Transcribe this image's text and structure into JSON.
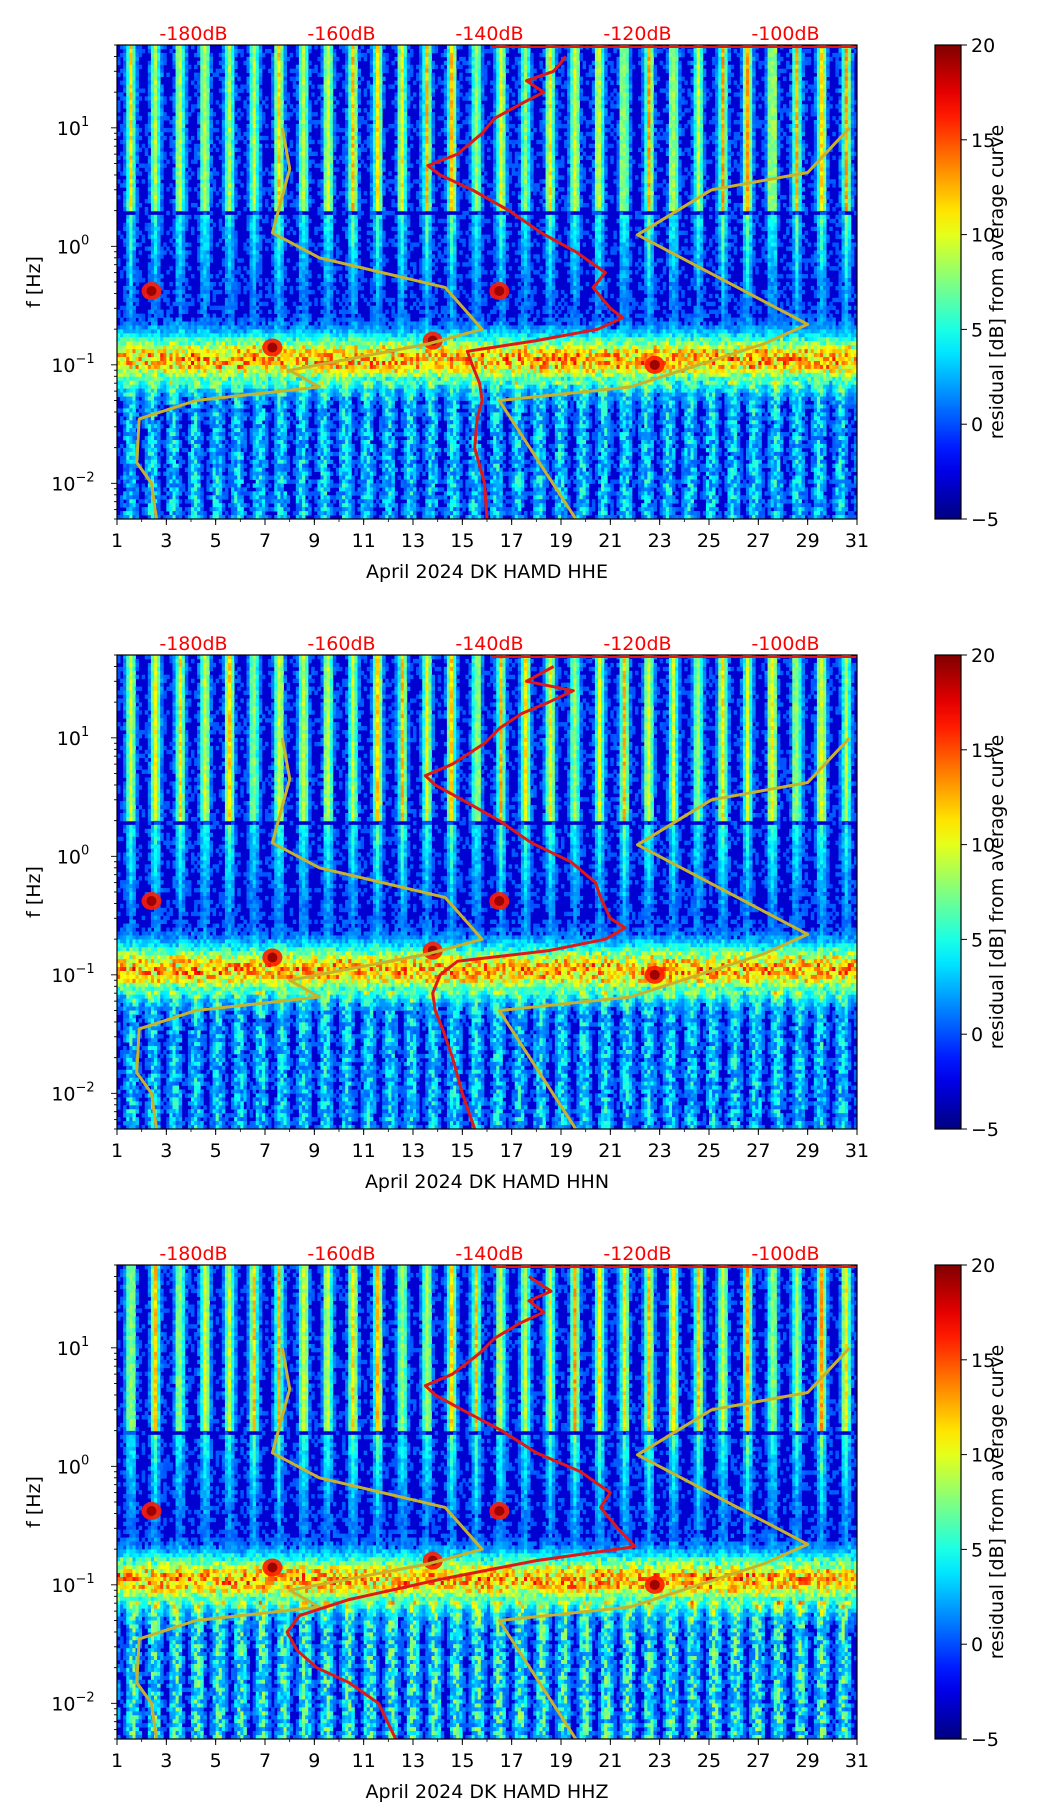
{
  "colors": {
    "noise_model": "#c8b22c",
    "average_curve": "#e01818",
    "db_labels": "#ff0000"
  },
  "chart_data": [
    {
      "type": "heatmap",
      "xlabel": "April 2024 DK HAMD  HHE",
      "ylabel": "f [Hz]",
      "x_ticks": [
        "1",
        "3",
        "5",
        "7",
        "9",
        "11",
        "13",
        "15",
        "17",
        "19",
        "21",
        "23",
        "25",
        "27",
        "29",
        "31"
      ],
      "xlim": [
        1,
        31
      ],
      "y_ticks": [
        {
          "value": 10,
          "base": "10",
          "exp": "1"
        },
        {
          "value": 1,
          "base": "10",
          "exp": "0"
        },
        {
          "value": 0.1,
          "base": "10",
          "exp": "−1"
        },
        {
          "value": 0.01,
          "base": "10",
          "exp": "−2"
        }
      ],
      "ylim": [
        0.005,
        50
      ],
      "yscale": "log",
      "top_axis_labels": [
        "-180dB",
        "-160dB",
        "-140dB",
        "-120dB",
        "-100dB"
      ],
      "top_axis_positions": [
        4.1,
        10.1,
        16.1,
        22.1,
        28.1
      ],
      "colorbar": {
        "label": "residual [dB] from average curve",
        "ticks": [
          "20",
          "15",
          "10",
          "5",
          "0",
          "−5"
        ],
        "range": [
          -5,
          20
        ]
      },
      "noise_model": {
        "x": [
          7.7,
          8.0,
          7.3,
          9.2,
          14.3,
          15.8,
          13.6,
          8.0,
          9.2,
          4.2,
          1.9,
          1.8,
          2.4,
          2.6
        ],
        "y": [
          10,
          4.5,
          1.3,
          0.8,
          0.45,
          0.2,
          0.15,
          0.09,
          0.065,
          0.05,
          0.035,
          0.015,
          0.01,
          0.005
        ]
      },
      "noise_model_high": {
        "x": [
          30.7,
          29.0,
          25.1,
          22.1,
          29.0,
          27.2,
          21.8,
          16.5,
          19.6
        ],
        "y": [
          10,
          4.2,
          3.0,
          1.25,
          0.22,
          0.15,
          0.065,
          0.05,
          0.005
        ]
      },
      "average_curve": {
        "x": [
          16.0,
          15.9,
          15.5,
          15.6,
          15.8,
          15.7,
          15.4,
          15.2,
          18.0,
          20.5,
          21.5,
          21.0,
          20.3,
          20.8,
          19.6,
          18.2,
          16.9,
          15.4,
          14.1,
          13.6,
          14.8,
          15.8,
          16.3,
          17.4,
          18.3,
          17.6,
          18.7,
          19.2
        ],
        "y": [
          0.005,
          0.01,
          0.02,
          0.035,
          0.05,
          0.07,
          0.1,
          0.13,
          0.16,
          0.2,
          0.25,
          0.3,
          0.45,
          0.6,
          0.9,
          1.3,
          2.0,
          3.0,
          4.0,
          4.8,
          6.0,
          9.0,
          12.0,
          16.0,
          20.0,
          25.0,
          30.0,
          40.0
        ]
      }
    },
    {
      "type": "heatmap",
      "xlabel": "April 2024 DK HAMD  HHN",
      "ylabel": "f [Hz]",
      "x_ticks": [
        "1",
        "3",
        "5",
        "7",
        "9",
        "11",
        "13",
        "15",
        "17",
        "19",
        "21",
        "23",
        "25",
        "27",
        "29",
        "31"
      ],
      "xlim": [
        1,
        31
      ],
      "y_ticks": [
        {
          "value": 10,
          "base": "10",
          "exp": "1"
        },
        {
          "value": 1,
          "base": "10",
          "exp": "0"
        },
        {
          "value": 0.1,
          "base": "10",
          "exp": "−1"
        },
        {
          "value": 0.01,
          "base": "10",
          "exp": "−2"
        }
      ],
      "ylim": [
        0.005,
        50
      ],
      "yscale": "log",
      "top_axis_labels": [
        "-180dB",
        "-160dB",
        "-140dB",
        "-120dB",
        "-100dB"
      ],
      "top_axis_positions": [
        4.1,
        10.1,
        16.1,
        22.1,
        28.1
      ],
      "colorbar": {
        "label": "residual [dB] from average curve",
        "ticks": [
          "20",
          "15",
          "10",
          "5",
          "0",
          "−5"
        ],
        "range": [
          -5,
          20
        ]
      },
      "noise_model": {
        "x": [
          7.7,
          8.0,
          7.3,
          9.2,
          14.3,
          15.8,
          13.6,
          8.0,
          9.2,
          4.2,
          1.9,
          1.8,
          2.4,
          2.6
        ],
        "y": [
          10,
          4.5,
          1.3,
          0.8,
          0.45,
          0.2,
          0.15,
          0.09,
          0.065,
          0.05,
          0.035,
          0.015,
          0.01,
          0.005
        ]
      },
      "noise_model_high": {
        "x": [
          30.7,
          29.0,
          25.1,
          22.1,
          29.0,
          27.2,
          21.8,
          16.5,
          19.6
        ],
        "y": [
          10,
          4.2,
          3.0,
          1.25,
          0.22,
          0.15,
          0.065,
          0.05,
          0.005
        ]
      },
      "average_curve": {
        "x": [
          15.5,
          15.0,
          14.6,
          14.2,
          13.9,
          13.8,
          14.1,
          14.8,
          18.5,
          20.8,
          21.6,
          21.0,
          20.6,
          20.4,
          19.4,
          17.8,
          16.5,
          15.0,
          13.9,
          13.5,
          14.6,
          15.9,
          16.5,
          17.4,
          18.5,
          19.5,
          17.6,
          18.7
        ],
        "y": [
          0.005,
          0.01,
          0.02,
          0.035,
          0.05,
          0.07,
          0.1,
          0.13,
          0.16,
          0.2,
          0.25,
          0.3,
          0.45,
          0.6,
          0.9,
          1.3,
          2.0,
          3.0,
          4.0,
          4.8,
          6.0,
          9.0,
          12.0,
          16.0,
          20.0,
          25.0,
          30.0,
          40.0
        ]
      }
    },
    {
      "type": "heatmap",
      "xlabel": "April 2024 DK HAMD  HHZ",
      "ylabel": "f [Hz]",
      "x_ticks": [
        "1",
        "3",
        "5",
        "7",
        "9",
        "11",
        "13",
        "15",
        "17",
        "19",
        "21",
        "23",
        "25",
        "27",
        "29",
        "31"
      ],
      "xlim": [
        1,
        31
      ],
      "y_ticks": [
        {
          "value": 10,
          "base": "10",
          "exp": "1"
        },
        {
          "value": 1,
          "base": "10",
          "exp": "0"
        },
        {
          "value": 0.1,
          "base": "10",
          "exp": "−1"
        },
        {
          "value": 0.01,
          "base": "10",
          "exp": "−2"
        }
      ],
      "ylim": [
        0.005,
        50
      ],
      "yscale": "log",
      "top_axis_labels": [
        "-180dB",
        "-160dB",
        "-140dB",
        "-120dB",
        "-100dB"
      ],
      "top_axis_positions": [
        4.1,
        10.1,
        16.1,
        22.1,
        28.1
      ],
      "colorbar": {
        "label": "residual [dB] from average curve",
        "ticks": [
          "20",
          "15",
          "10",
          "5",
          "0",
          "−5"
        ],
        "range": [
          -5,
          20
        ]
      },
      "noise_model": {
        "x": [
          7.7,
          8.0,
          7.3,
          9.2,
          14.3,
          15.8,
          13.6,
          8.0,
          9.2,
          4.2,
          1.9,
          1.8,
          2.4,
          2.6
        ],
        "y": [
          10,
          4.5,
          1.3,
          0.8,
          0.45,
          0.2,
          0.15,
          0.09,
          0.065,
          0.05,
          0.035,
          0.015,
          0.01,
          0.005
        ]
      },
      "noise_model_high": {
        "x": [
          30.7,
          29.0,
          25.1,
          22.1,
          29.0,
          27.2,
          21.8,
          16.5,
          19.6
        ],
        "y": [
          10,
          4.2,
          3.0,
          1.25,
          0.22,
          0.15,
          0.065,
          0.05,
          0.005
        ]
      },
      "average_curve": {
        "x": [
          12.3,
          11.6,
          10.4,
          9.1,
          8.3,
          7.9,
          8.4,
          10.4,
          14.0,
          18.0,
          22.0,
          21.3,
          20.6,
          21.0,
          19.8,
          18.0,
          16.6,
          15.0,
          13.9,
          13.5,
          14.6,
          15.7,
          16.3,
          17.3,
          18.3,
          17.7,
          18.6,
          17.7
        ],
        "y": [
          0.005,
          0.01,
          0.015,
          0.02,
          0.028,
          0.04,
          0.055,
          0.075,
          0.11,
          0.16,
          0.21,
          0.3,
          0.45,
          0.6,
          0.9,
          1.3,
          2.0,
          3.0,
          4.0,
          4.8,
          6.0,
          9.0,
          12.0,
          16.0,
          20.0,
          25.0,
          30.0,
          40.0
        ]
      }
    }
  ]
}
